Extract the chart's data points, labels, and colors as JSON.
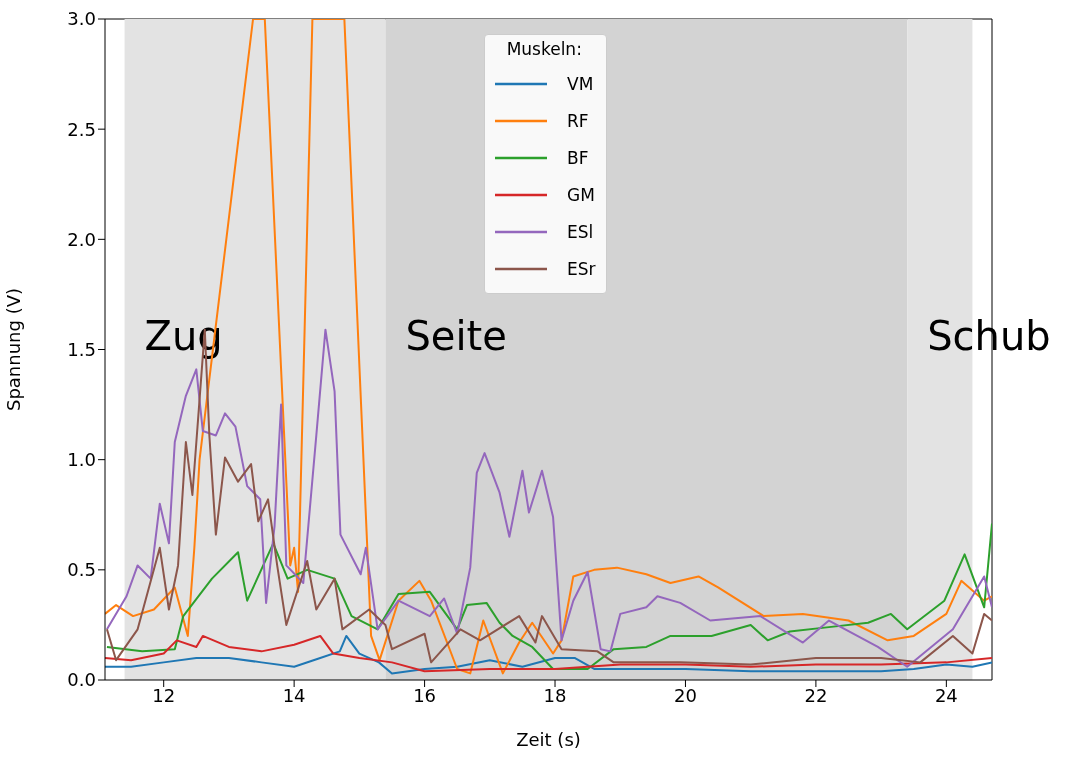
{
  "chart_data": {
    "type": "line",
    "xlabel": "Zeit (s)",
    "ylabel": "Spannung (V)",
    "legend_title": "Muskeln:",
    "legend": "top",
    "grid": false,
    "marker": "none",
    "line_style": "solid",
    "xlim": [
      11.1,
      24.7
    ],
    "xticks": [
      12,
      14,
      16,
      18,
      20,
      22,
      24
    ],
    "ylim": [
      0,
      3.0
    ],
    "yticks": [
      {
        "value": 0,
        "label": "0.0"
      },
      {
        "value": 0.5,
        "label": "0.5"
      },
      {
        "value": 1,
        "label": "1.0"
      },
      {
        "value": 1.5,
        "label": "1.5"
      },
      {
        "value": 2,
        "label": "2.0"
      },
      {
        "value": 2.5,
        "label": "2.5"
      },
      {
        "value": 3,
        "label": "3.0"
      }
    ],
    "bands": [
      {
        "axis": "x",
        "from": 11.4,
        "to": 15.4,
        "label": "Zug",
        "color": "#e3e3e3"
      },
      {
        "axis": "x",
        "from": 15.4,
        "to": 23.4,
        "label": "Seite",
        "color": "#d3d3d3"
      },
      {
        "axis": "x",
        "from": 23.4,
        "to": 24.4,
        "label": "Schub",
        "color": "#e3e3e3"
      }
    ],
    "series": [
      {
        "name": "VM",
        "color": "#1f77b4",
        "x": [
          11.1,
          11.5,
          12,
          12.5,
          13,
          13.5,
          14,
          14.4,
          14.7,
          14.8,
          15,
          15.3,
          15.5,
          16,
          16.5,
          17,
          17.5,
          18,
          18.3,
          18.6,
          19,
          20,
          21,
          22,
          23,
          23.5,
          24,
          24.4,
          24.7
        ],
        "values": [
          0.06,
          0.06,
          0.08,
          0.1,
          0.1,
          0.08,
          0.06,
          0.1,
          0.13,
          0.2,
          0.12,
          0.08,
          0.03,
          0.05,
          0.06,
          0.09,
          0.06,
          0.1,
          0.1,
          0.05,
          0.05,
          0.05,
          0.04,
          0.04,
          0.04,
          0.05,
          0.07,
          0.06,
          0.08
        ]
      },
      {
        "name": "RF",
        "color": "#ff7f0e",
        "x": [
          11.1,
          11.27,
          11.53,
          11.85,
          12.17,
          12.37,
          12.47,
          12.55,
          13.37,
          13.55,
          13.94,
          14.0,
          14.06,
          14.28,
          14.77,
          15.18,
          15.31,
          15.6,
          15.92,
          16.1,
          16.5,
          16.7,
          16.9,
          17.2,
          17.45,
          17.65,
          17.97,
          18.1,
          18.28,
          18.6,
          18.95,
          19.4,
          19.77,
          20.2,
          20.5,
          21.2,
          21.8,
          22.5,
          23.1,
          23.5,
          24.0,
          24.23,
          24.58,
          24.7
        ],
        "values": [
          0.3,
          0.34,
          0.29,
          0.32,
          0.42,
          0.2,
          0.6,
          1.0,
          3.0,
          3.0,
          0.52,
          0.6,
          0.4,
          3.0,
          3.0,
          0.2,
          0.09,
          0.36,
          0.45,
          0.36,
          0.05,
          0.03,
          0.27,
          0.03,
          0.17,
          0.26,
          0.12,
          0.18,
          0.47,
          0.5,
          0.51,
          0.48,
          0.44,
          0.47,
          0.42,
          0.29,
          0.3,
          0.27,
          0.18,
          0.2,
          0.3,
          0.45,
          0.36,
          0.38
        ]
      },
      {
        "name": "BF",
        "color": "#2ca02c",
        "x": [
          11.13,
          11.67,
          12.17,
          12.3,
          12.74,
          13.14,
          13.28,
          13.68,
          13.9,
          14.2,
          14.62,
          14.88,
          15.28,
          15.6,
          16.08,
          16.5,
          16.65,
          16.95,
          17.15,
          17.35,
          17.65,
          17.97,
          18.5,
          18.9,
          19.4,
          19.77,
          20.4,
          21.0,
          21.26,
          21.6,
          22.2,
          22.8,
          23.15,
          23.4,
          23.97,
          24.28,
          24.58,
          24.7
        ],
        "values": [
          0.15,
          0.13,
          0.14,
          0.29,
          0.46,
          0.58,
          0.36,
          0.62,
          0.46,
          0.5,
          0.46,
          0.29,
          0.23,
          0.39,
          0.4,
          0.23,
          0.34,
          0.35,
          0.26,
          0.2,
          0.15,
          0.05,
          0.05,
          0.14,
          0.15,
          0.2,
          0.2,
          0.25,
          0.18,
          0.22,
          0.24,
          0.26,
          0.3,
          0.23,
          0.36,
          0.57,
          0.33,
          0.71
        ]
      },
      {
        "name": "GM",
        "color": "#d62728",
        "x": [
          11.1,
          11.5,
          12,
          12.2,
          12.5,
          12.6,
          13,
          13.5,
          14,
          14.4,
          14.6,
          15,
          15.5,
          16,
          17,
          18,
          19,
          20,
          21,
          22,
          23,
          24,
          24.7
        ],
        "values": [
          0.1,
          0.09,
          0.12,
          0.18,
          0.15,
          0.2,
          0.15,
          0.13,
          0.16,
          0.2,
          0.12,
          0.1,
          0.08,
          0.04,
          0.05,
          0.05,
          0.07,
          0.07,
          0.06,
          0.07,
          0.07,
          0.08,
          0.1
        ]
      },
      {
        "name": "ESl",
        "color": "#9467bd",
        "x": [
          11.13,
          11.43,
          11.6,
          11.8,
          11.94,
          12.08,
          12.17,
          12.34,
          12.5,
          12.6,
          12.8,
          12.94,
          13.1,
          13.28,
          13.48,
          13.57,
          13.7,
          13.8,
          13.88,
          14.14,
          14.34,
          14.48,
          14.62,
          14.71,
          15.02,
          15.1,
          15.28,
          15.6,
          16.08,
          16.3,
          16.5,
          16.7,
          16.8,
          16.92,
          17.15,
          17.3,
          17.5,
          17.6,
          17.8,
          17.97,
          18.1,
          18.28,
          18.5,
          18.7,
          18.85,
          19.0,
          19.4,
          19.57,
          19.92,
          20.38,
          21.15,
          21.8,
          22.2,
          22.95,
          23.4,
          24.1,
          24.58,
          24.7
        ],
        "values": [
          0.23,
          0.38,
          0.52,
          0.46,
          0.8,
          0.62,
          1.08,
          1.29,
          1.41,
          1.13,
          1.11,
          1.21,
          1.15,
          0.88,
          0.82,
          0.35,
          0.7,
          1.25,
          0.52,
          0.44,
          1.11,
          1.59,
          1.31,
          0.66,
          0.48,
          0.6,
          0.23,
          0.36,
          0.29,
          0.37,
          0.21,
          0.51,
          0.94,
          1.03,
          0.85,
          0.65,
          0.95,
          0.76,
          0.95,
          0.74,
          0.18,
          0.36,
          0.49,
          0.14,
          0.13,
          0.3,
          0.33,
          0.38,
          0.35,
          0.27,
          0.29,
          0.17,
          0.27,
          0.15,
          0.06,
          0.23,
          0.47,
          0.33
        ]
      },
      {
        "name": "ESr",
        "color": "#8c564b",
        "x": [
          11.13,
          11.27,
          11.6,
          11.94,
          12.08,
          12.22,
          12.34,
          12.44,
          12.63,
          12.7,
          12.8,
          12.94,
          13.14,
          13.34,
          13.45,
          13.6,
          13.74,
          13.88,
          14.2,
          14.34,
          14.62,
          14.74,
          15.15,
          15.4,
          15.5,
          16.0,
          16.1,
          16.55,
          16.85,
          17.45,
          17.7,
          17.8,
          18.1,
          18.65,
          18.9,
          19.92,
          21,
          22,
          23,
          23.6,
          24.1,
          24.4,
          24.58,
          24.7
        ],
        "values": [
          0.23,
          0.09,
          0.23,
          0.6,
          0.32,
          0.52,
          1.08,
          0.84,
          1.59,
          1.11,
          0.66,
          1.01,
          0.9,
          0.98,
          0.72,
          0.82,
          0.52,
          0.25,
          0.54,
          0.32,
          0.46,
          0.23,
          0.32,
          0.25,
          0.14,
          0.21,
          0.08,
          0.23,
          0.18,
          0.29,
          0.17,
          0.29,
          0.14,
          0.13,
          0.08,
          0.08,
          0.07,
          0.1,
          0.1,
          0.08,
          0.2,
          0.12,
          0.3,
          0.27
        ]
      }
    ]
  }
}
